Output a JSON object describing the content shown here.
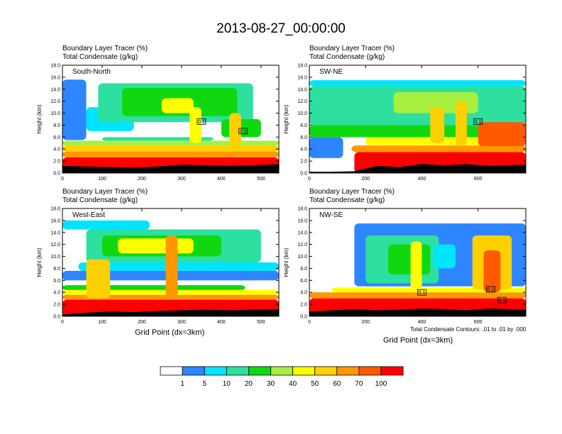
{
  "title": "2013-08-27_00:00:00",
  "colors": {
    "levels": [
      "#ffffff",
      "#2d86ff",
      "#00e5ff",
      "#2ee0a0",
      "#10d810",
      "#a8f040",
      "#ffff00",
      "#ffd000",
      "#ff9800",
      "#ff5a00",
      "#ff0000"
    ],
    "terrain": "#000000",
    "contour": "#000000"
  },
  "chart_data": [
    {
      "type": "heatmap",
      "panel": "South-North",
      "label_line1": "Boundary Layer Tracer   (%)",
      "label_line2": "Total Condensate   (g/kg)",
      "ylabel": "Height (km)",
      "xlabel": "",
      "xlim": [
        0,
        545
      ],
      "ylim": [
        0,
        18
      ],
      "xticks": [
        "0",
        "100",
        "200",
        "300",
        "400",
        "500"
      ],
      "yticks": [
        "0.0",
        "2.0",
        "4.0",
        "6.0",
        "8.0",
        "10.0",
        "12.0",
        "14.0",
        "16.0",
        "18.0"
      ],
      "marker_x": 275,
      "contour_boxes": [
        {
          "x": 350,
          "y": 8.6,
          "label": "0.1"
        },
        {
          "x": 455,
          "y": 7.0,
          "label": "0.1"
        }
      ],
      "surface": [
        [
          0,
          1.2
        ],
        [
          60,
          1.1
        ],
        [
          120,
          1.0
        ],
        [
          180,
          0.9
        ],
        [
          240,
          1.1
        ],
        [
          300,
          1.4
        ],
        [
          360,
          1.3
        ],
        [
          420,
          1.2
        ],
        [
          480,
          1.3
        ],
        [
          545,
          1.5
        ]
      ],
      "bands": [
        {
          "level": 10,
          "x": [
            0,
            545
          ],
          "bottom": 0.0,
          "top": 2.6
        },
        {
          "level": 8,
          "x": [
            0,
            545
          ],
          "bottom": 2.6,
          "top": 3.6
        },
        {
          "level": 7,
          "x": [
            0,
            545
          ],
          "bottom": 3.6,
          "top": 4.6
        },
        {
          "level": 5,
          "x": [
            0,
            545
          ],
          "bottom": 4.6,
          "top": 5.4
        },
        {
          "level": 3,
          "x": [
            100,
            380
          ],
          "bottom": 5.4,
          "top": 6.0
        },
        {
          "level": 1,
          "x": [
            0,
            60
          ],
          "bottom": 5.5,
          "top": 15.6
        },
        {
          "level": 2,
          "x": [
            60,
            180
          ],
          "bottom": 7.0,
          "top": 11.0
        },
        {
          "level": 3,
          "x": [
            90,
            480
          ],
          "bottom": 8.5,
          "top": 15.0
        },
        {
          "level": 4,
          "x": [
            150,
            440
          ],
          "bottom": 9.5,
          "top": 14.2
        },
        {
          "level": 6,
          "x": [
            250,
            330
          ],
          "bottom": 10.0,
          "top": 12.5
        },
        {
          "level": 4,
          "x": [
            400,
            500
          ],
          "bottom": 6.0,
          "top": 9.0
        },
        {
          "level": 7,
          "x": [
            420,
            450
          ],
          "bottom": 4.5,
          "top": 10.0
        },
        {
          "level": 6,
          "x": [
            320,
            350
          ],
          "bottom": 5.0,
          "top": 11.0
        }
      ]
    },
    {
      "type": "heatmap",
      "panel": "SW-NE",
      "label_line1": "Boundary Layer Tracer   (%)",
      "label_line2": "Total Condensate   (g/kg)",
      "ylabel": "Height (km)",
      "xlabel": "",
      "xlim": [
        0,
        770
      ],
      "ylim": [
        0,
        18
      ],
      "xticks": [
        "0",
        "200",
        "400",
        "600"
      ],
      "yticks": [
        "0.0",
        "2.0",
        "4.0",
        "6.0",
        "8.0",
        "10.0",
        "12.0",
        "14.0",
        "16.0",
        "18.0"
      ],
      "marker_x": 390,
      "contour_boxes": [
        {
          "x": 600,
          "y": 8.6,
          "label": "0.1"
        }
      ],
      "surface": [
        [
          0,
          0.2
        ],
        [
          80,
          0.2
        ],
        [
          160,
          0.3
        ],
        [
          240,
          1.2
        ],
        [
          320,
          1.0
        ],
        [
          400,
          1.5
        ],
        [
          480,
          1.3
        ],
        [
          560,
          1.5
        ],
        [
          640,
          1.2
        ],
        [
          770,
          1.4
        ]
      ],
      "bands": [
        {
          "level": 10,
          "x": [
            160,
            770
          ],
          "bottom": 0.0,
          "top": 3.5
        },
        {
          "level": 8,
          "x": [
            150,
            770
          ],
          "bottom": 3.5,
          "top": 4.6
        },
        {
          "level": 6,
          "x": [
            200,
            770
          ],
          "bottom": 4.6,
          "top": 6.0
        },
        {
          "level": 4,
          "x": [
            0,
            770
          ],
          "bottom": 6.0,
          "top": 8.0
        },
        {
          "level": 3,
          "x": [
            0,
            770
          ],
          "bottom": 8.0,
          "top": 14.5
        },
        {
          "level": 2,
          "x": [
            0,
            770
          ],
          "bottom": 14.5,
          "top": 15.5
        },
        {
          "level": 1,
          "x": [
            0,
            120
          ],
          "bottom": 2.5,
          "top": 6.0
        },
        {
          "level": 5,
          "x": [
            300,
            600
          ],
          "bottom": 10.0,
          "top": 13.5
        },
        {
          "level": 7,
          "x": [
            520,
            560
          ],
          "bottom": 4.5,
          "top": 12.0
        },
        {
          "level": 7,
          "x": [
            430,
            480
          ],
          "bottom": 5.0,
          "top": 11.0
        },
        {
          "level": 9,
          "x": [
            600,
            770
          ],
          "bottom": 4.5,
          "top": 8.5
        }
      ]
    },
    {
      "type": "heatmap",
      "panel": "West-East",
      "label_line1": "Boundary Layer Tracer   (%)",
      "label_line2": "Total Condensate   (g/kg)",
      "ylabel": "Height (km)",
      "xlabel": "Grid Point (dx=3km)",
      "xlim": [
        0,
        545
      ],
      "ylim": [
        0,
        18
      ],
      "xticks": [
        "0",
        "100",
        "200",
        "300",
        "400",
        "500"
      ],
      "yticks": [
        "0.0",
        "2.0",
        "4.0",
        "6.0",
        "8.0",
        "10.0",
        "12.0",
        "14.0",
        "16.0",
        "18.0"
      ],
      "marker_x": 275,
      "contour_boxes": [],
      "surface": [
        [
          0,
          0.3
        ],
        [
          60,
          0.6
        ],
        [
          120,
          0.8
        ],
        [
          180,
          0.7
        ],
        [
          240,
          0.9
        ],
        [
          300,
          1.0
        ],
        [
          360,
          1.1
        ],
        [
          420,
          1.0
        ],
        [
          480,
          1.1
        ],
        [
          545,
          1.2
        ]
      ],
      "bands": [
        {
          "level": 10,
          "x": [
            0,
            545
          ],
          "bottom": 0.0,
          "top": 2.8
        },
        {
          "level": 8,
          "x": [
            0,
            545
          ],
          "bottom": 2.8,
          "top": 3.6
        },
        {
          "level": 6,
          "x": [
            0,
            545
          ],
          "bottom": 3.6,
          "top": 4.4
        },
        {
          "level": 4,
          "x": [
            0,
            460
          ],
          "bottom": 4.4,
          "top": 5.2
        },
        {
          "level": 1,
          "x": [
            0,
            545
          ],
          "bottom": 6.0,
          "top": 7.6
        },
        {
          "level": 2,
          "x": [
            40,
            545
          ],
          "bottom": 7.6,
          "top": 9.0
        },
        {
          "level": 3,
          "x": [
            60,
            500
          ],
          "bottom": 9.0,
          "top": 14.5
        },
        {
          "level": 4,
          "x": [
            100,
            400
          ],
          "bottom": 10.0,
          "top": 13.5
        },
        {
          "level": 6,
          "x": [
            140,
            330
          ],
          "bottom": 10.5,
          "top": 13.0
        },
        {
          "level": 7,
          "x": [
            60,
            120
          ],
          "bottom": 3.0,
          "top": 9.5
        },
        {
          "level": 8,
          "x": [
            260,
            290
          ],
          "bottom": 3.0,
          "top": 13.5
        },
        {
          "level": 2,
          "x": [
            0,
            220
          ],
          "bottom": 14.5,
          "top": 16.0
        }
      ]
    },
    {
      "type": "heatmap",
      "panel": "NW-SE",
      "label_line1": "Boundary Layer Tracer   (%)",
      "label_line2": "Total Condensate   (g/kg)",
      "ylabel": "Height (km)",
      "xlabel": "Grid Point (dx=3km)",
      "xlim": [
        0,
        770
      ],
      "ylim": [
        0,
        18
      ],
      "xticks": [
        "0",
        "200",
        "400",
        "600"
      ],
      "yticks": [
        "0.0",
        "2.0",
        "4.0",
        "6.0",
        "8.0",
        "10.0",
        "12.0",
        "14.0",
        "16.0",
        "18.0"
      ],
      "marker_x": 390,
      "contour_note": "Total Condensate Contours: .01 to .01 by .000",
      "contour_boxes": [
        {
          "x": 400,
          "y": 4.0,
          "label": "0.1"
        },
        {
          "x": 645,
          "y": 4.5,
          "label": "0.1"
        },
        {
          "x": 685,
          "y": 2.7,
          "label": "0.1"
        }
      ],
      "surface": [
        [
          0,
          0.8
        ],
        [
          80,
          1.0
        ],
        [
          160,
          1.2
        ],
        [
          240,
          1.0
        ],
        [
          320,
          1.1
        ],
        [
          400,
          1.3
        ],
        [
          480,
          1.2
        ],
        [
          560,
          1.0
        ],
        [
          640,
          1.3
        ],
        [
          770,
          1.1
        ]
      ],
      "bands": [
        {
          "level": 10,
          "x": [
            0,
            770
          ],
          "bottom": 0.0,
          "top": 3.0
        },
        {
          "level": 8,
          "x": [
            0,
            770
          ],
          "bottom": 3.0,
          "top": 4.0
        },
        {
          "level": 6,
          "x": [
            80,
            770
          ],
          "bottom": 4.0,
          "top": 4.8
        },
        {
          "level": 1,
          "x": [
            160,
            770
          ],
          "bottom": 5.0,
          "top": 15.5
        },
        {
          "level": 3,
          "x": [
            200,
            460
          ],
          "bottom": 5.5,
          "top": 13.5
        },
        {
          "level": 2,
          "x": [
            440,
            520
          ],
          "bottom": 8.0,
          "top": 12.0
        },
        {
          "level": 4,
          "x": [
            280,
            430
          ],
          "bottom": 7.0,
          "top": 12.0
        },
        {
          "level": 7,
          "x": [
            580,
            720
          ],
          "bottom": 4.5,
          "top": 13.5
        },
        {
          "level": 9,
          "x": [
            620,
            680
          ],
          "bottom": 4.0,
          "top": 11.0
        },
        {
          "level": 6,
          "x": [
            360,
            400
          ],
          "bottom": 4.0,
          "top": 12.5
        }
      ]
    }
  ],
  "colorbar": {
    "tick_labels": [
      "1",
      "5",
      "10",
      "20",
      "30",
      "40",
      "50",
      "60",
      "70",
      "100"
    ]
  }
}
